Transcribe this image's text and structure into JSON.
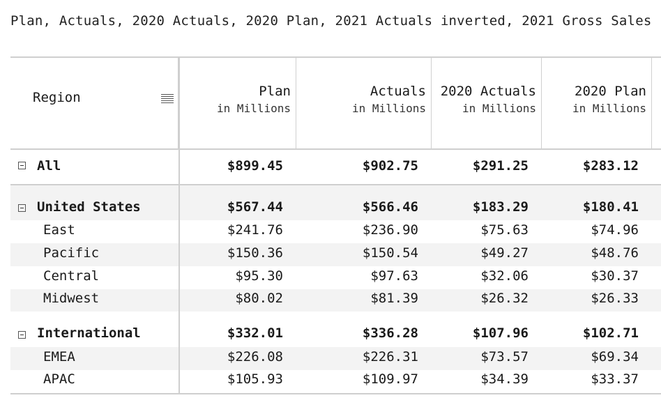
{
  "caption": "Plan, Actuals, 2020 Actuals, 2020 Plan, 2021 Actuals inverted, 2021 Gross Sales",
  "header": {
    "region_label": "Region",
    "menu_icon": "hamburger-menu-icon",
    "columns": [
      {
        "title": "Plan",
        "subtitle": "in Millions"
      },
      {
        "title": "Actuals",
        "subtitle": "in Millions"
      },
      {
        "title": "2020 Actuals",
        "subtitle": "in Millions"
      },
      {
        "title": "2020 Plan",
        "subtitle": "in Millions"
      }
    ]
  },
  "rows": {
    "all": {
      "label": "All",
      "values": [
        "$899.45",
        "$902.75",
        "$291.25",
        "$283.12"
      ]
    },
    "us": {
      "label": "United States",
      "values": [
        "$567.44",
        "$566.46",
        "$183.29",
        "$180.41"
      ]
    },
    "east": {
      "label": "East",
      "values": [
        "$241.76",
        "$236.90",
        "$75.63",
        "$74.96"
      ]
    },
    "pacific": {
      "label": "Pacific",
      "values": [
        "$150.36",
        "$150.54",
        "$49.27",
        "$48.76"
      ]
    },
    "central": {
      "label": "Central",
      "values": [
        "$95.30",
        "$97.63",
        "$32.06",
        "$30.37"
      ]
    },
    "midwest": {
      "label": "Midwest",
      "values": [
        "$80.02",
        "$81.39",
        "$26.32",
        "$26.33"
      ]
    },
    "intl": {
      "label": "International",
      "values": [
        "$332.01",
        "$336.28",
        "$107.96",
        "$102.71"
      ]
    },
    "emea": {
      "label": "EMEA",
      "values": [
        "$226.08",
        "$226.31",
        "$73.57",
        "$69.34"
      ]
    },
    "apac": {
      "label": "APAC",
      "values": [
        "$105.93",
        "$109.97",
        "$34.39",
        "$33.37"
      ]
    }
  },
  "colors": {
    "border": "#cfcfcf",
    "row_shade": "#f3f3f3",
    "text": "#1a1a1a"
  }
}
